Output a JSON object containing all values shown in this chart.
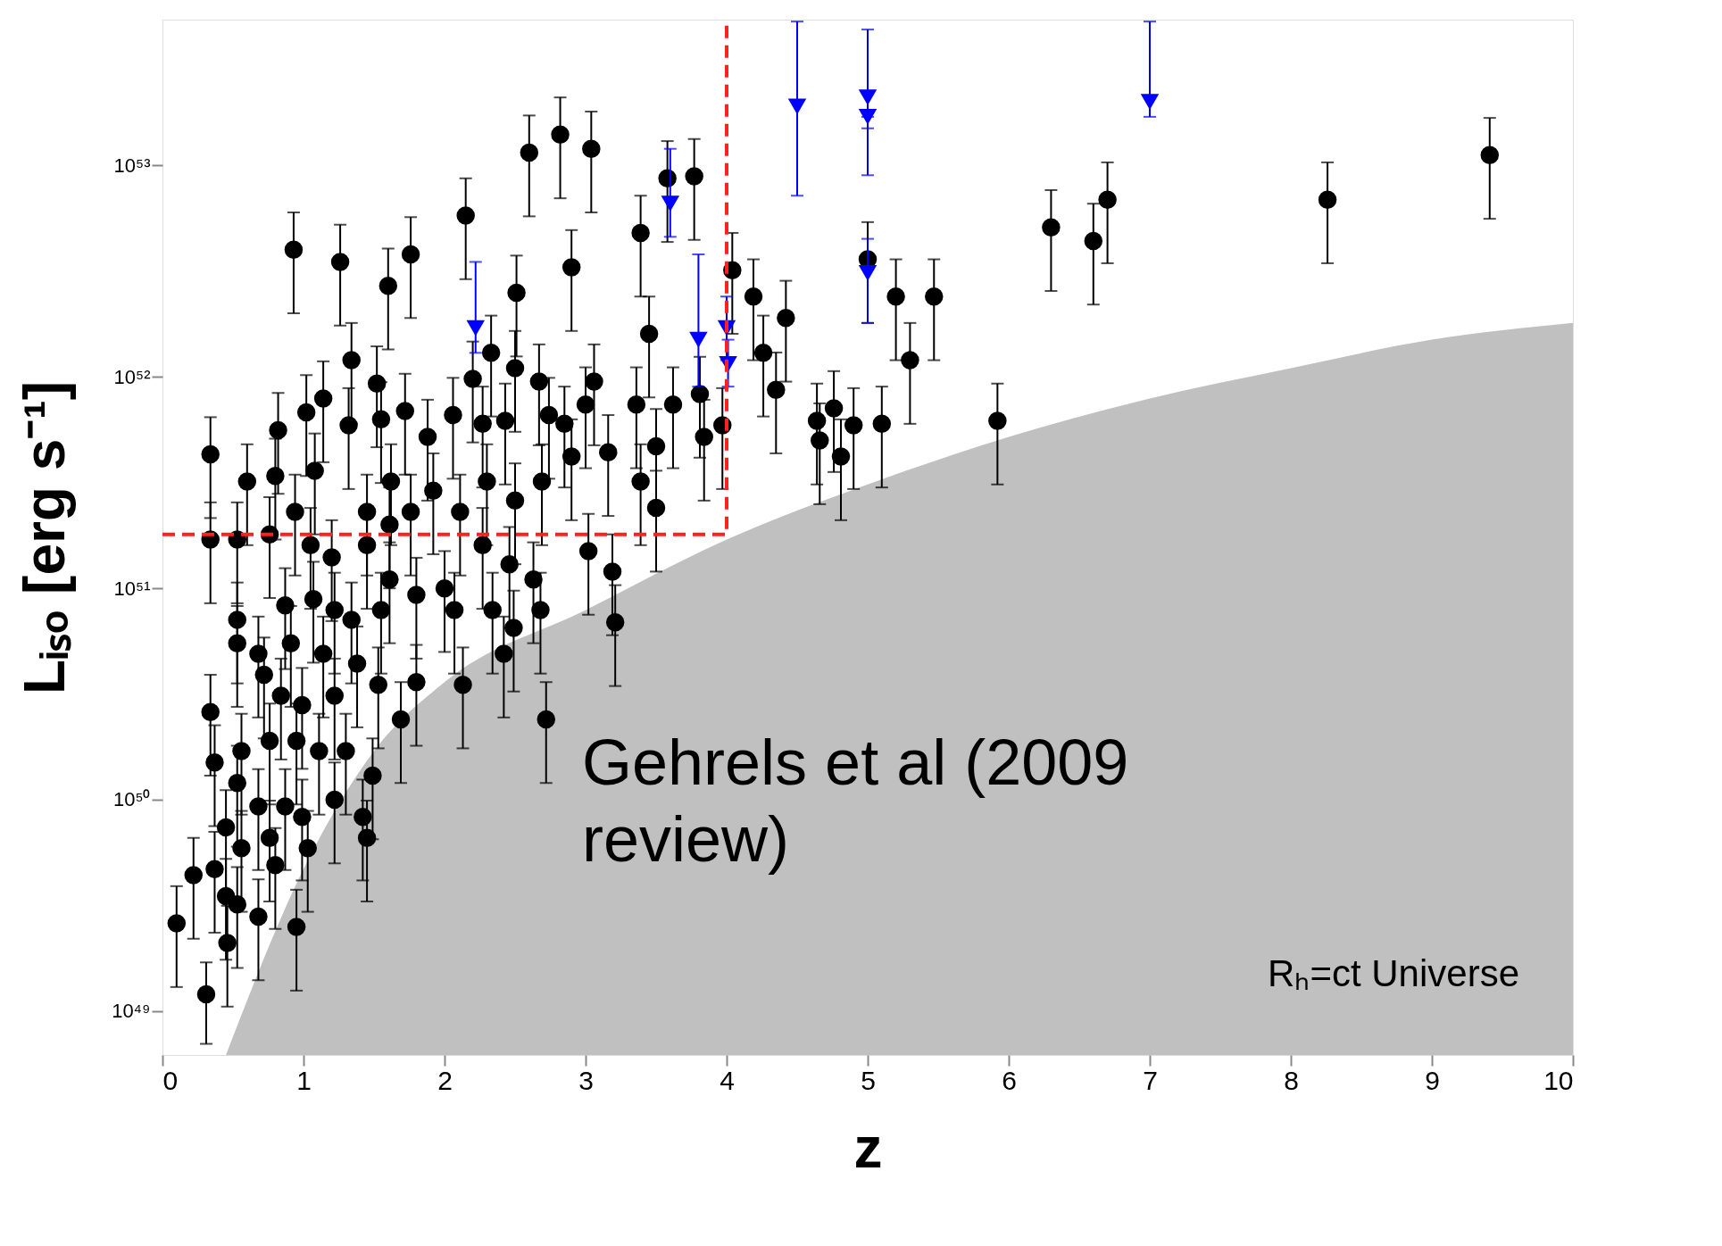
{
  "chart_data": {
    "type": "scatter",
    "xlabel": "z",
    "ylabel": "Lᵢₛₒ [erg s⁻¹]",
    "log": "y",
    "grid": false,
    "xlim": [
      0,
      10
    ],
    "xticks": [
      0,
      1,
      2,
      3,
      4,
      5,
      6,
      7,
      8,
      9,
      10
    ],
    "ylim": [
      6.2e+48,
      4.9e+53
    ],
    "yticks": [
      {
        "value": 1e+49,
        "label": "10⁴⁹"
      },
      {
        "value": 1e+50,
        "label": "10⁵⁰"
      },
      {
        "value": 1e+51,
        "label": "10⁵¹"
      },
      {
        "value": 1e+52,
        "label": "10⁵²"
      },
      {
        "value": 1e+53,
        "label": "10⁵³"
      }
    ],
    "annotations": [
      "Gehrels et al (2009 review)",
      "Rₕ=ct Universe"
    ],
    "series": [
      {
        "type": "area",
        "color": "#c0c0c0",
        "x": [
          0.45,
          1,
          1.5,
          2,
          3,
          4,
          5,
          6,
          7,
          8,
          9,
          10
        ],
        "values": [
          6.2e+48,
          4.7e+49,
          1.7e+50,
          3.6e+50,
          7.9e+50,
          1.7e+51,
          3.1e+51,
          5.2e+51,
          7.9e+51,
          1.1e+52,
          1.5e+52,
          1.8e+52
        ]
      },
      {
        "marker": "circle",
        "color": "#000000",
        "x": [
          0.93,
          1.26,
          1.76,
          1.6,
          2.15,
          2.6,
          2.82,
          3.04,
          2.9,
          2.51,
          3.39,
          3.58,
          3.77,
          3.45,
          4.04,
          4.19,
          4.42,
          4.26,
          4.35,
          5.0,
          5.2,
          5.47,
          5.3,
          4.64,
          4.76,
          4.66,
          4.81,
          4.9,
          5.1,
          5.92,
          6.3,
          6.6,
          6.7,
          8.26,
          9.41,
          2.72,
          3.21,
          3.19,
          3.02,
          2.13,
          2.42,
          2.49,
          0.34,
          0.34,
          0.53,
          0.6,
          0.8,
          0.82,
          1.02,
          1.14,
          1.34,
          1.32,
          0.94,
          1.08,
          1.52,
          1.55,
          1.72,
          1.62,
          1.45,
          1.88,
          2.06,
          2.2,
          2.33,
          2.5,
          2.67,
          2.74,
          2.43,
          2.27,
          2.85,
          3.06,
          3.0,
          2.9,
          3.16,
          3.36,
          3.62,
          3.81,
          3.84,
          3.5,
          3.39,
          3.5,
          3.97,
          1.92,
          2.11,
          2.3,
          2.5,
          2.69,
          1.61,
          1.76,
          1.45,
          1.2,
          1.05,
          1.61,
          1.8,
          2.0,
          2.27,
          2.46,
          2.63,
          2.68,
          2.34,
          2.07,
          1.55,
          1.34,
          1.22,
          1.07,
          0.87,
          0.53,
          0.53,
          0.68,
          0.91,
          1.14,
          1.38,
          1.53,
          1.8,
          1.69,
          0.72,
          0.84,
          0.99,
          1.22,
          0.34,
          0.37,
          0.56,
          0.76,
          0.95,
          1.11,
          1.3,
          1.49,
          0.53,
          0.68,
          0.87,
          0.99,
          1.22,
          1.42,
          1.45,
          0.45,
          0.56,
          0.76,
          0.8,
          1.03,
          0.37,
          0.22,
          0.45,
          0.53,
          0.68,
          0.95,
          0.46,
          0.1,
          0.31,
          0.76
        ],
        "values": [
          4e+52,
          3.5e+52,
          3.8e+52,
          2.7e+52,
          5.8e+52,
          1.15e+53,
          1.4e+53,
          1.2e+53,
          3.3e+52,
          2.5e+52,
          4.8e+52,
          8.7e+52,
          8.9e+52,
          1.6e+52,
          3.2e+52,
          2.4e+52,
          1.9e+52,
          1.3e+52,
          8.7e+51,
          3.6e+52,
          2.4e+52,
          2.4e+52,
          1.2e+52,
          6.2e+51,
          7.1e+51,
          5e+51,
          4.2e+51,
          5.9e+51,
          6e+51,
          6.2e+51,
          5.1e+52,
          4.4e+52,
          6.9e+52,
          6.9e+52,
          1.12e+53,
          2.4e+50,
          6.9e+50,
          1.2e+51,
          1.5e+51,
          3.5e+50,
          4.9e+50,
          6.5e+50,
          4.3e+51,
          1.7e+51,
          1.7e+51,
          3.2e+51,
          3.4e+51,
          5.6e+51,
          6.8e+51,
          7.9e+51,
          1.2e+52,
          5.9e+51,
          2.3e+51,
          3.6e+51,
          9.3e+51,
          6.3e+51,
          6.9e+51,
          3.2e+51,
          2.3e+51,
          5.2e+51,
          6.6e+51,
          9.8e+51,
          1.3e+52,
          1.1e+52,
          9.5e+51,
          6.6e+51,
          6.2e+51,
          6e+51,
          6e+51,
          9.5e+51,
          7.4e+51,
          4.2e+51,
          4.4e+51,
          7.4e+51,
          7.4e+51,
          8.3e+51,
          5.2e+51,
          4.7e+51,
          3.2e+51,
          2.4e+51,
          5.9e+51,
          2.9e+51,
          2.3e+51,
          3.2e+51,
          2.6e+51,
          3.2e+51,
          2e+51,
          2.3e+51,
          1.6e+51,
          1.4e+51,
          1.6e+51,
          1.1e+51,
          9.3e+50,
          1e+51,
          1.6e+51,
          1.3e+51,
          1.1e+51,
          7.9e+50,
          7.9e+50,
          7.9e+50,
          7.9e+50,
          7.1e+50,
          7.9e+50,
          8.9e+50,
          8.3e+50,
          7.1e+50,
          5.5e+50,
          4.9e+50,
          5.5e+50,
          4.9e+50,
          4.4e+50,
          3.5e+50,
          3.6e+50,
          2.4e+50,
          3.9e+50,
          3.1e+50,
          2.8e+50,
          3.1e+50,
          2.6e+50,
          1.5e+50,
          1.7e+50,
          1.9e+50,
          1.9e+50,
          1.7e+50,
          1.7e+50,
          1.3e+50,
          1.2e+50,
          9.3e+49,
          9.3e+49,
          8.3e+49,
          1e+50,
          8.3e+49,
          6.6e+49,
          7.4e+49,
          5.9e+49,
          6.6e+49,
          4.9e+49,
          5.9e+49,
          4.7e+49,
          4.4e+49,
          3.5e+49,
          3.2e+49,
          2.8e+49,
          2.5e+49,
          2.1e+49,
          2.6e+49,
          1.2e+49,
          1.8e+51
        ],
        "errors": [
          2e+52,
          1.75e+52,
          1.9e+52,
          1.35e+52,
          2.9e+52,
          5.75e+52,
          7e+52,
          6e+52,
          1.65e+52,
          1.25e+52,
          2.4e+52,
          4.35e+52,
          4.45e+52,
          8e+51,
          1.6e+52,
          1.2e+52,
          9.5e+51,
          6.5e+51,
          4.35e+51,
          1.8e+52,
          1.2e+52,
          1.2e+52,
          6e+51,
          3.1e+51,
          3.55e+51,
          2.5e+51,
          2.1e+51,
          2.95e+51,
          3e+51,
          3.1e+51,
          2.55e+52,
          2.2e+52,
          3.45e+52,
          3.45e+52,
          5.6e+52,
          1.2e+50,
          3.45e+50,
          6e+50,
          7.5e+50,
          1.75e+50,
          2.45e+50,
          3.25e+50,
          2.15e+51,
          8.5e+50,
          8.5e+50,
          1.6e+51,
          1.7e+51,
          2.8e+51,
          3.4e+51,
          3.95e+51,
          6e+51,
          2.95e+51,
          1.15e+51,
          1.8e+51,
          4.65e+51,
          3.15e+51,
          3.45e+51,
          1.6e+51,
          1.15e+51,
          2.6e+51,
          3.3e+51,
          4.9e+51,
          6.5e+51,
          5.5e+51,
          4.75e+51,
          3.3e+51,
          3.1e+51,
          3e+51,
          3e+51,
          4.75e+51,
          3.7e+51,
          2.1e+51,
          2.2e+51,
          3.7e+51,
          3.7e+51,
          4.15e+51,
          2.6e+51,
          2.35e+51,
          1.6e+51,
          1.2e+51,
          2.95e+51,
          1.45e+51,
          1.15e+51,
          1.6e+51,
          1.3e+51,
          1.6e+51,
          1e+51,
          1.15e+51,
          8e+50,
          7e+50,
          8e+50,
          5.5e+50,
          4.65e+50,
          5e+50,
          8e+50,
          6.5e+50,
          5.5e+50,
          3.95e+50,
          3.95e+50,
          3.95e+50,
          3.95e+50,
          3.55e+50,
          3.95e+50,
          4.45e+50,
          4.15e+50,
          3.55e+50,
          2.75e+50,
          2.45e+50,
          2.75e+50,
          2.45e+50,
          2.2e+50,
          1.75e+50,
          1.8e+50,
          1.2e+50,
          1.95e+50,
          1.55e+50,
          1.4e+50,
          1.55e+50,
          1.3e+50,
          7.5e+49,
          8.5e+49,
          9.5e+49,
          9.5e+49,
          8.5e+49,
          8.5e+49,
          6.5e+49,
          6e+49,
          4.65e+49,
          4.65e+49,
          4.15e+49,
          5e+49,
          4.15e+49,
          3.3e+49,
          3.7e+49,
          2.95e+49,
          3.3e+49,
          2.45e+49,
          2.95e+49,
          2.35e+49,
          2.2e+49,
          1.75e+49,
          1.6e+49,
          1.4e+49,
          1.25e+49,
          1.05e+49,
          1.3e+49,
          5e+48,
          9e+50
        ]
      },
      {
        "marker": "triangle",
        "color": "#0000ff",
        "x": [
          2.22,
          3.6,
          3.8,
          4.0,
          4.01,
          4.5,
          5.0,
          5.0,
          5.0,
          7.0
        ],
        "values": [
          1.7e+52,
          6.6e+52,
          1.5e+52,
          1.7e+52,
          1.15e+52,
          1.9e+53,
          2.1e+53,
          1.7e+53,
          3.1e+52,
          2e+53
        ],
        "errors": [
          [
            1.3e+52,
            3.5e+52
          ],
          [
            4.6e+52,
            1.2e+53
          ],
          [
            9e+51,
            3.8e+52
          ],
          [
            1.2e+52,
            2.4e+52
          ],
          [
            9e+51,
            1.5e+52
          ],
          [
            7.2e+52,
            4.8e+53
          ],
          [
            1.5e+53,
            4.4e+53
          ],
          [
            9e+52,
            1.7e+53
          ],
          [
            1.8e+52,
            4.5e+52
          ],
          [
            1.7e+53,
            4.8e+53
          ]
        ]
      },
      {
        "type": "line",
        "color": "#ff2020",
        "line_style": "dashed",
        "x": [
          0,
          4,
          4
        ],
        "values": [
          1.8e+51,
          1.8e+51,
          4.9e+53
        ]
      }
    ]
  }
}
